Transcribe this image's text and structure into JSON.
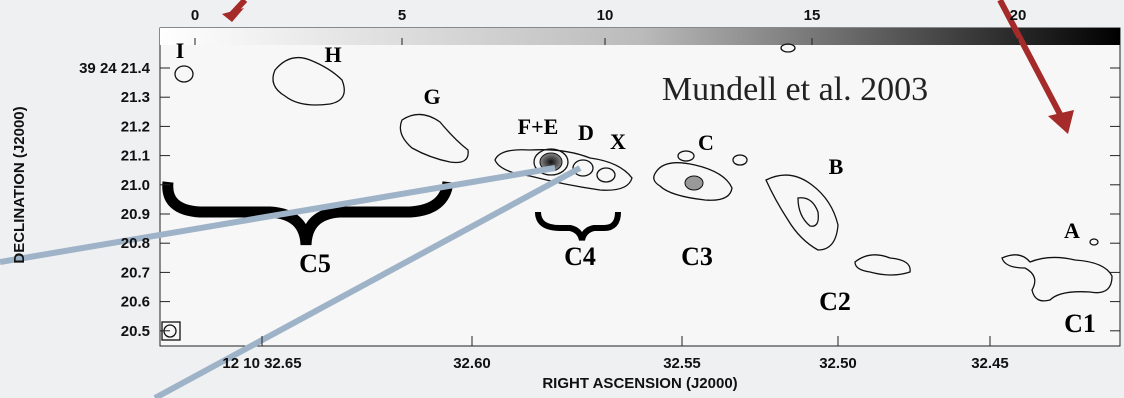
{
  "colorbar": {
    "ticks": [
      "0",
      "5",
      "10",
      "15",
      "20"
    ]
  },
  "axes": {
    "x_label": "RIGHT ASCENSION (J2000)",
    "y_label": "DECLINATION (J2000)",
    "x_ticks": [
      "12 10 32.65",
      "32.60",
      "32.55",
      "32.50",
      "32.45"
    ],
    "y_ticks": [
      "39 24 21.4",
      "21.3",
      "21.2",
      "21.1",
      "21.0",
      "20.9",
      "20.8",
      "20.7",
      "20.6",
      "20.5"
    ]
  },
  "components": [
    "I",
    "H",
    "G",
    "F+E",
    "D",
    "X",
    "C",
    "B",
    "A"
  ],
  "groups": [
    "C5",
    "C4",
    "C3",
    "C2",
    "C1"
  ],
  "annotation": "Mundell et al. 2003"
}
